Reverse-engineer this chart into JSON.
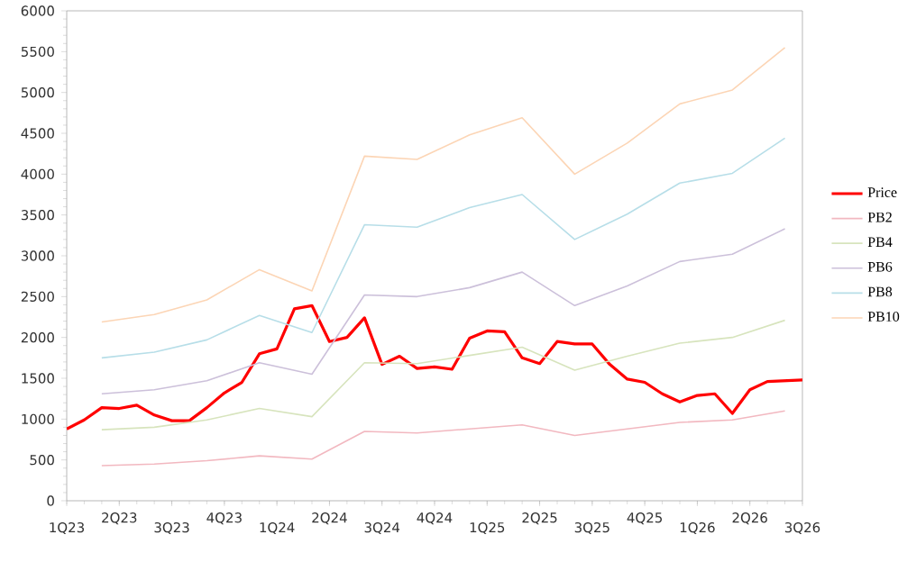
{
  "chart_data": {
    "type": "line",
    "categories": [
      "1Q23",
      null,
      null,
      "2Q23",
      null,
      null,
      "3Q23",
      null,
      null,
      "4Q23",
      null,
      null,
      "1Q24",
      null,
      null,
      "2Q24",
      null,
      null,
      "3Q24",
      null,
      null,
      "4Q24",
      null,
      null,
      "1Q25",
      null,
      null,
      "2Q25",
      null,
      null,
      "3Q25",
      null,
      null,
      "4Q25",
      null,
      null,
      "1Q26",
      null,
      null,
      "2Q26",
      null,
      null,
      "3Q26"
    ],
    "ylim": [
      0,
      6000
    ],
    "yticks": [
      0,
      500,
      1000,
      1500,
      2000,
      2500,
      3000,
      3500,
      4000,
      4500,
      5000,
      5500,
      6000
    ],
    "legend": "right",
    "marker": "none",
    "line_style": "solid",
    "series": [
      {
        "name": "Price",
        "color": "#ff0000",
        "values": [
          880,
          990,
          1140,
          1130,
          1170,
          1050,
          980,
          980,
          1140,
          1320,
          1450,
          1800,
          1860,
          2350,
          2390,
          1950,
          2000,
          2240,
          1670,
          1770,
          1620,
          1640,
          1610,
          1990,
          2080,
          2070,
          1750,
          1680,
          1950,
          1920,
          1920,
          1670,
          1490,
          1450,
          1310,
          1210,
          1290,
          1310,
          1070,
          1360,
          1460,
          1470,
          1480
        ]
      },
      {
        "name": "PB2",
        "color": "#f2b8c0",
        "values": [
          null,
          null,
          430,
          null,
          null,
          450,
          null,
          null,
          490,
          null,
          null,
          550,
          null,
          null,
          510,
          null,
          null,
          850,
          null,
          null,
          830,
          null,
          null,
          880,
          null,
          null,
          930,
          null,
          null,
          800,
          null,
          null,
          880,
          null,
          null,
          960,
          null,
          null,
          990,
          null,
          null,
          1100,
          null
        ]
      },
      {
        "name": "PB4",
        "color": "#d7e4bd",
        "values": [
          null,
          null,
          870,
          null,
          null,
          900,
          null,
          null,
          990,
          null,
          null,
          1130,
          null,
          null,
          1030,
          null,
          null,
          1690,
          null,
          null,
          1680,
          null,
          null,
          1780,
          null,
          null,
          1880,
          null,
          null,
          1600,
          null,
          null,
          1770,
          null,
          null,
          1930,
          null,
          null,
          2000,
          null,
          null,
          2210,
          null
        ]
      },
      {
        "name": "PB6",
        "color": "#ccc0da",
        "values": [
          null,
          null,
          1310,
          null,
          null,
          1360,
          null,
          null,
          1470,
          null,
          null,
          1690,
          null,
          null,
          1550,
          null,
          null,
          2520,
          null,
          null,
          2500,
          null,
          null,
          2610,
          null,
          null,
          2800,
          null,
          null,
          2390,
          null,
          null,
          2630,
          null,
          null,
          2930,
          null,
          null,
          3020,
          null,
          null,
          3330,
          null
        ]
      },
      {
        "name": "PB8",
        "color": "#b7dee8",
        "values": [
          null,
          null,
          1750,
          null,
          null,
          1820,
          null,
          null,
          1970,
          null,
          null,
          2270,
          null,
          null,
          2060,
          null,
          null,
          3380,
          null,
          null,
          3350,
          null,
          null,
          3590,
          null,
          null,
          3750,
          null,
          null,
          3200,
          null,
          null,
          3510,
          null,
          null,
          3890,
          null,
          null,
          4010,
          null,
          null,
          4440,
          null
        ]
      },
      {
        "name": "PB10",
        "color": "#fcd5b5",
        "values": [
          null,
          null,
          2190,
          null,
          null,
          2280,
          null,
          null,
          2460,
          null,
          null,
          2830,
          null,
          null,
          2570,
          null,
          null,
          4220,
          null,
          null,
          4180,
          null,
          null,
          4480,
          null,
          null,
          4690,
          null,
          null,
          4000,
          null,
          null,
          4380,
          null,
          null,
          4860,
          null,
          null,
          5030,
          null,
          null,
          5550,
          null
        ]
      }
    ]
  }
}
